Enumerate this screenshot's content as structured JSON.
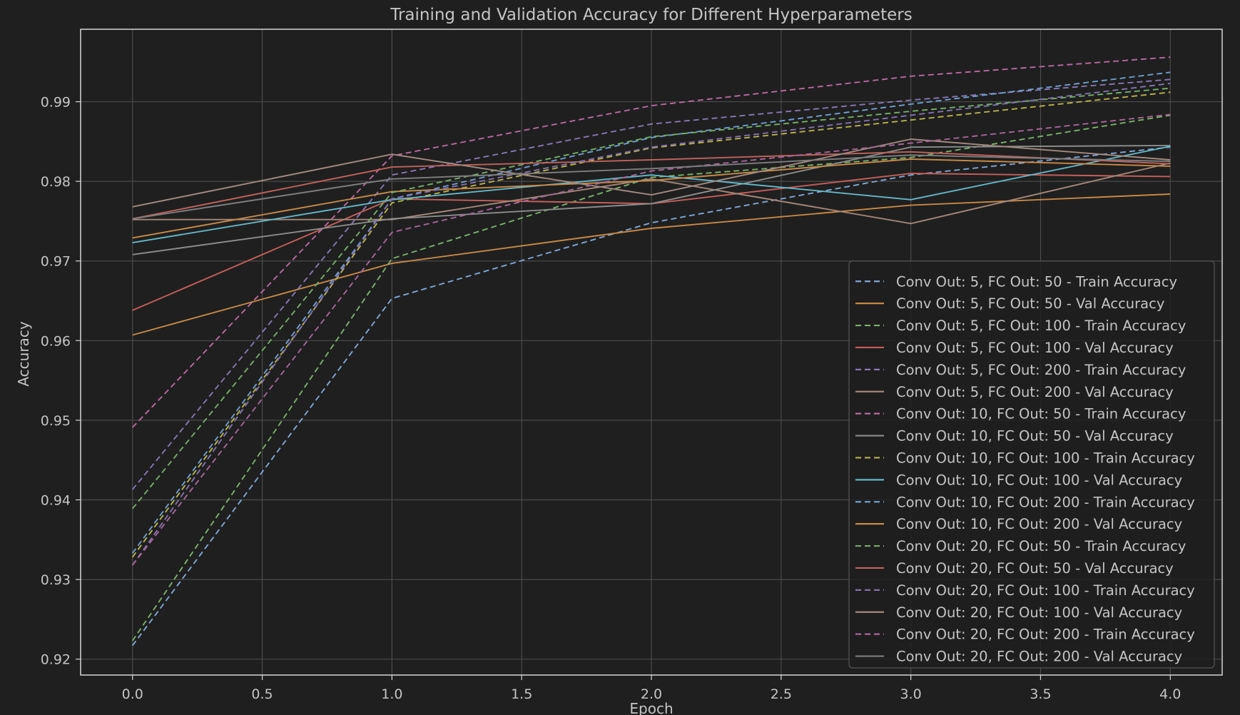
{
  "chart_data": {
    "type": "line",
    "title": "Training and Validation Accuracy for Different Hyperparameters",
    "xlabel": "Epoch",
    "ylabel": "Accuracy",
    "xlim": [
      -0.2,
      4.2
    ],
    "ylim": [
      0.918,
      0.9991
    ],
    "xticks": [
      0.0,
      0.5,
      1.0,
      1.5,
      2.0,
      2.5,
      3.0,
      3.5,
      4.0
    ],
    "xtick_labels": [
      "0.0",
      "0.5",
      "1.0",
      "1.5",
      "2.0",
      "2.5",
      "3.0",
      "3.5",
      "4.0"
    ],
    "yticks": [
      0.92,
      0.93,
      0.94,
      0.95,
      0.96,
      0.97,
      0.98,
      0.99
    ],
    "ytick_labels": [
      "0.92",
      "0.93",
      "0.94",
      "0.95",
      "0.96",
      "0.97",
      "0.98",
      "0.99"
    ],
    "grid": true,
    "legend_position": "lower-right",
    "x": [
      0,
      1,
      2,
      3,
      4
    ],
    "series": [
      {
        "name": "Conv Out: 5, FC Out: 50 - Train Accuracy",
        "style": "dashed",
        "color": "#7fa6d6",
        "values": [
          0.9217,
          0.9653,
          0.9748,
          0.9808,
          0.9843
        ]
      },
      {
        "name": "Conv Out: 5, FC Out: 50 - Val Accuracy",
        "style": "solid",
        "color": "#c78845",
        "values": [
          0.9607,
          0.9697,
          0.9741,
          0.977,
          0.9784
        ]
      },
      {
        "name": "Conv Out: 5, FC Out: 100 - Train Accuracy",
        "style": "dashed",
        "color": "#78b26a",
        "values": [
          0.9223,
          0.9703,
          0.9805,
          0.983,
          0.9883
        ]
      },
      {
        "name": "Conv Out: 5, FC Out: 100 - Val Accuracy",
        "style": "solid",
        "color": "#c65f5a",
        "values": [
          0.9638,
          0.9778,
          0.9772,
          0.981,
          0.9806
        ]
      },
      {
        "name": "Conv Out: 5, FC Out: 200 - Train Accuracy",
        "style": "dashed",
        "color": "#8877b5",
        "values": [
          0.9413,
          0.9808,
          0.9872,
          0.9902,
          0.9928
        ]
      },
      {
        "name": "Conv Out: 5, FC Out: 200 - Val Accuracy",
        "style": "solid",
        "color": "#a58779",
        "values": [
          0.9752,
          0.9752,
          0.9803,
          0.9747,
          0.9823
        ]
      },
      {
        "name": "Conv Out: 10, FC Out: 50 - Train Accuracy",
        "style": "dashed",
        "color": "#b96a9f",
        "values": [
          0.9491,
          0.9832,
          0.9895,
          0.9932,
          0.9956
        ]
      },
      {
        "name": "Conv Out: 10, FC Out: 50 - Val Accuracy",
        "style": "solid",
        "color": "#8d8d8d",
        "values": [
          0.9708,
          0.9753,
          0.9772,
          0.9843,
          0.9845
        ]
      },
      {
        "name": "Conv Out: 10, FC Out: 100 - Train Accuracy",
        "style": "dashed",
        "color": "#b8b24c",
        "values": [
          0.9328,
          0.9773,
          0.9842,
          0.9877,
          0.9912
        ]
      },
      {
        "name": "Conv Out: 10, FC Out: 100 - Val Accuracy",
        "style": "solid",
        "color": "#63b8c9",
        "values": [
          0.9723,
          0.9777,
          0.9808,
          0.9777,
          0.9844
        ]
      },
      {
        "name": "Conv Out: 10, FC Out: 200 - Train Accuracy",
        "style": "dashed",
        "color": "#6f9fd0",
        "values": [
          0.9333,
          0.9778,
          0.9855,
          0.9897,
          0.9937
        ]
      },
      {
        "name": "Conv Out: 10, FC Out: 200 - Val Accuracy",
        "style": "solid",
        "color": "#c88a48",
        "values": [
          0.9729,
          0.9787,
          0.9801,
          0.9828,
          0.9819
        ]
      },
      {
        "name": "Conv Out: 20, FC Out: 50 - Train Accuracy",
        "style": "dashed",
        "color": "#74ae66",
        "values": [
          0.9389,
          0.9786,
          0.9856,
          0.9888,
          0.9917
        ]
      },
      {
        "name": "Conv Out: 20, FC Out: 50 - Val Accuracy",
        "style": "solid",
        "color": "#c0625c",
        "values": [
          0.9753,
          0.9818,
          0.9827,
          0.9837,
          0.9822
        ]
      },
      {
        "name": "Conv Out: 20, FC Out: 100 - Train Accuracy",
        "style": "dashed",
        "color": "#8372b0",
        "values": [
          0.9318,
          0.9778,
          0.9843,
          0.9883,
          0.9923
        ]
      },
      {
        "name": "Conv Out: 20, FC Out: 100 - Val Accuracy",
        "style": "solid",
        "color": "#a38a80",
        "values": [
          0.9768,
          0.9834,
          0.9783,
          0.9853,
          0.9827
        ]
      },
      {
        "name": "Conv Out: 20, FC Out: 200 - Train Accuracy",
        "style": "dashed",
        "color": "#a8659a",
        "values": [
          0.9318,
          0.9736,
          0.9813,
          0.9848,
          0.9884
        ]
      },
      {
        "name": "Conv Out: 20, FC Out: 200 - Val Accuracy",
        "style": "solid",
        "color": "#7f7f7f",
        "values": [
          0.9753,
          0.9803,
          0.9816,
          0.9833,
          0.9825
        ]
      }
    ]
  }
}
